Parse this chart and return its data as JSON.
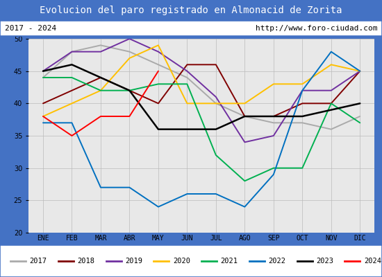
{
  "title": "Evolucion del paro registrado en Almonacid de Zorita",
  "subtitle_left": "2017 - 2024",
  "subtitle_right": "http://www.foro-ciudad.com",
  "months": [
    "ENE",
    "FEB",
    "MAR",
    "ABR",
    "MAY",
    "JUN",
    "JUL",
    "AGO",
    "SEP",
    "OCT",
    "NOV",
    "DIC"
  ],
  "ylim": [
    20,
    50
  ],
  "yticks": [
    20,
    25,
    30,
    35,
    40,
    45,
    50
  ],
  "series": {
    "2017": {
      "color": "#aaaaaa",
      "data": [
        44,
        48,
        49,
        48,
        46,
        44,
        40,
        38,
        37,
        37,
        36,
        38
      ]
    },
    "2018": {
      "color": "#800000",
      "data": [
        40,
        42,
        44,
        42,
        40,
        46,
        46,
        38,
        38,
        40,
        40,
        45
      ]
    },
    "2019": {
      "color": "#7030a0",
      "data": [
        45,
        48,
        48,
        50,
        48,
        45,
        41,
        34,
        35,
        42,
        42,
        45
      ]
    },
    "2020": {
      "color": "#ffc000",
      "data": [
        38,
        40,
        42,
        47,
        49,
        40,
        40,
        40,
        43,
        43,
        46,
        45
      ]
    },
    "2021": {
      "color": "#00b050",
      "data": [
        44,
        44,
        42,
        42,
        43,
        43,
        32,
        28,
        30,
        30,
        40,
        37
      ]
    },
    "2022": {
      "color": "#0070c0",
      "data": [
        37,
        37,
        27,
        27,
        24,
        26,
        26,
        24,
        29,
        42,
        48,
        45
      ]
    },
    "2023": {
      "color": "#000000",
      "data": [
        45,
        46,
        44,
        42,
        36,
        36,
        36,
        38,
        38,
        38,
        39,
        40
      ]
    },
    "2024": {
      "color": "#ff0000",
      "data": [
        38,
        35,
        38,
        38,
        45,
        null,
        null,
        null,
        null,
        null,
        null,
        null
      ]
    }
  }
}
